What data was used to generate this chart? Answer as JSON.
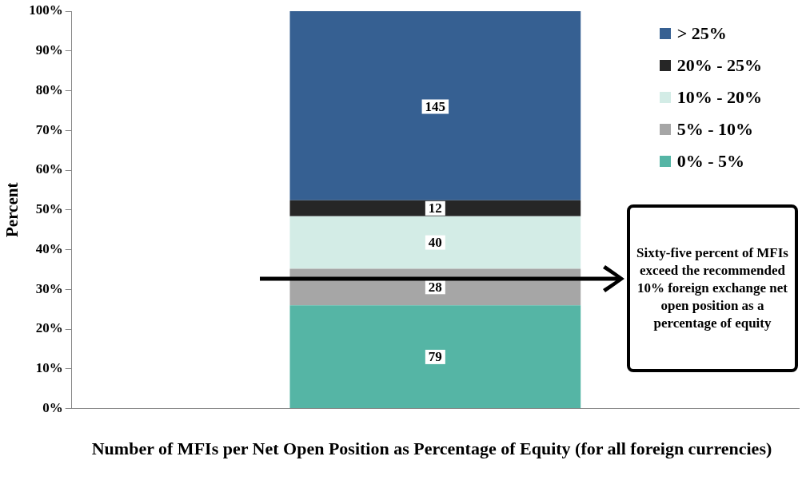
{
  "chart_data": {
    "type": "bar",
    "stacked": true,
    "xlabel": "Number of MFIs  per Net Open Position as Percentage of Equity (for all foreign currencies)",
    "ylabel": "Percent",
    "categories": [
      null
    ],
    "series": [
      {
        "name": "0% - 5%",
        "color": "#55b5a5",
        "values": [
          26
        ]
      },
      {
        "name": "5% - 10%",
        "color": "#a6a6a6",
        "values": [
          9.2
        ]
      },
      {
        "name": "10% - 20%",
        "color": "#d3ece6",
        "values": [
          13.2
        ]
      },
      {
        "name": "20% - 25%",
        "color": "#262626",
        "values": [
          4
        ]
      },
      {
        "name": "> 25%",
        "color": "#366092",
        "values": [
          47.6
        ]
      }
    ],
    "ylim": [
      0,
      100
    ],
    "yticks": [
      {
        "value": 0,
        "label": "0%"
      },
      {
        "value": 10,
        "label": "10%"
      },
      {
        "value": 20,
        "label": "20%"
      },
      {
        "value": 30,
        "label": "30%"
      },
      {
        "value": 40,
        "label": "40%"
      },
      {
        "value": 50,
        "label": "50%"
      },
      {
        "value": 60,
        "label": "60%"
      },
      {
        "value": 70,
        "label": "70%"
      },
      {
        "value": 80,
        "label": "80%"
      },
      {
        "value": 90,
        "label": "90%"
      },
      {
        "value": 100,
        "label": "100%"
      }
    ],
    "grid": false,
    "legend": "top right",
    "annotations": [
      {
        "text": "79",
        "y": 13
      },
      {
        "text": "28",
        "y": 30.6
      },
      {
        "text": "40",
        "y": 41.8
      },
      {
        "text": "12",
        "y": 50.4
      },
      {
        "text": "145",
        "y": 76
      },
      "Sixty-five percent of MFIs exceed the recommended 10% foreign exchange net open position as a percentage of equity"
    ]
  }
}
